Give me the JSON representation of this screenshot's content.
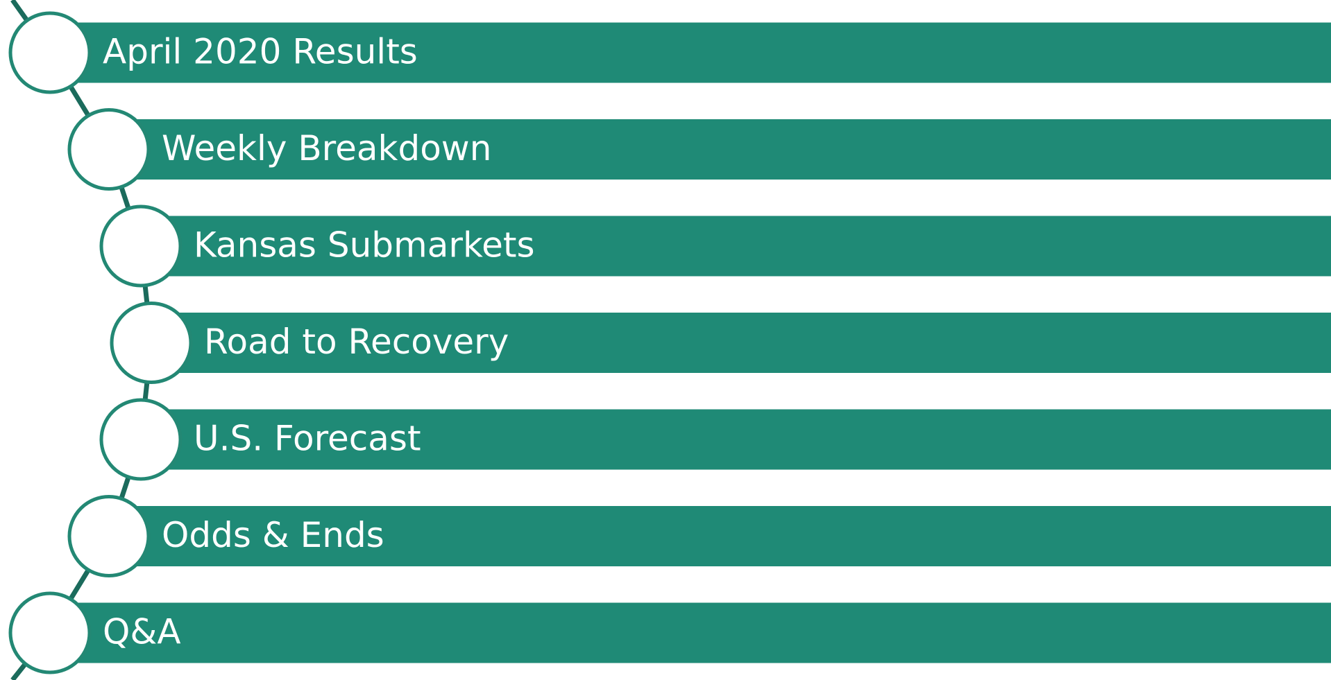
{
  "agenda": {
    "items": [
      "April 2020 Results",
      "Weekly Breakdown",
      "Kansas Submarkets",
      "Road to Recovery",
      "U.S. Forecast",
      "Odds & Ends",
      "Q&A"
    ]
  }
}
